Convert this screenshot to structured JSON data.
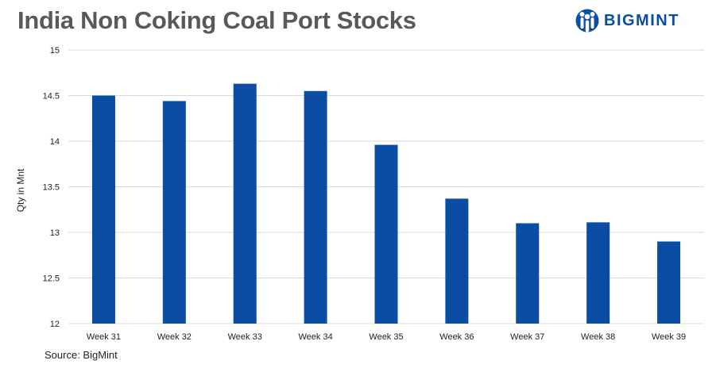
{
  "header": {
    "title": "India Non Coking Coal Port Stocks",
    "logo_text": "BIGMINT",
    "logo_icon": "bigmint-people-icon",
    "brand_color": "#0a4da2"
  },
  "footer": {
    "source": "Source:  BigMint"
  },
  "chart_data": {
    "type": "bar",
    "title": "India Non Coking Coal Port Stocks",
    "xlabel": "",
    "ylabel": "Qty in Mnt",
    "categories": [
      "Week 31",
      "Week 32",
      "Week 33",
      "Week 34",
      "Week 35",
      "Week 36",
      "Week 37",
      "Week 38",
      "Week 39"
    ],
    "values": [
      14.5,
      14.44,
      14.63,
      14.55,
      13.96,
      13.37,
      13.1,
      13.11,
      12.9
    ],
    "ylim": [
      12,
      15
    ],
    "yticks": [
      "12",
      "12.5",
      "13",
      "13.5",
      "14",
      "14.5",
      "15"
    ],
    "grid": true,
    "bar_color": "#0a4da2"
  }
}
